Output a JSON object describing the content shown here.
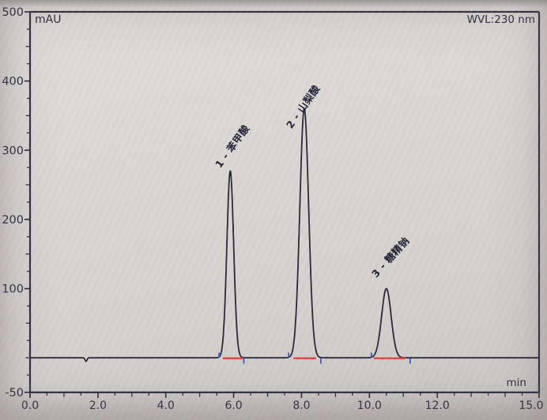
{
  "window": {
    "y_axis_unit": "mAU",
    "wavelength_label": "WVL:230 nm",
    "x_axis_unit": "min"
  },
  "chart_data": {
    "type": "line",
    "ylabel": "mAU",
    "xlabel": "min",
    "annotation": "WVL:230 nm",
    "xlim": [
      0.0,
      15.0
    ],
    "ylim": [
      -50,
      500
    ],
    "x_major_ticks": [
      0,
      2,
      4,
      6,
      8,
      10,
      12,
      15
    ],
    "x_major_tick_labels": [
      "0.0",
      "2.0",
      "4.0",
      "6.0",
      "8.0",
      "10.0",
      "12.0",
      "15.0"
    ],
    "x_minor_tick_step": 0.5,
    "y_major_ticks": [
      500,
      400,
      300,
      200,
      100,
      -50
    ],
    "y_major_tick_labels": [
      "500",
      "400",
      "300",
      "200",
      "100",
      "-50"
    ],
    "y_minor_tick_step": 25,
    "grid": false,
    "legend": false,
    "baseline_mau": 0,
    "baseline_dip": {
      "time_min": 1.65,
      "depth_mau": 5,
      "sigma_min": 0.03
    },
    "peaks": [
      {
        "number": 1,
        "label": "1 - 苯甲酸",
        "retention_time_min": 5.9,
        "height_mau": 270,
        "sigma_min": 0.1,
        "integration_start_min": 5.68,
        "integration_end_min": 6.27,
        "marker_start_min": 5.57,
        "marker_end_min": 6.3
      },
      {
        "number": 2,
        "label": "2 - 山梨酸",
        "retention_time_min": 8.08,
        "height_mau": 360,
        "sigma_min": 0.13,
        "integration_start_min": 7.76,
        "integration_end_min": 8.43,
        "marker_start_min": 7.62,
        "marker_end_min": 8.57
      },
      {
        "number": 3,
        "label": "3 - 糖精钠",
        "retention_time_min": 10.5,
        "height_mau": 100,
        "sigma_min": 0.14,
        "integration_start_min": 10.13,
        "integration_end_min": 11.06,
        "marker_start_min": 10.06,
        "marker_end_min": 11.2
      }
    ],
    "colors": {
      "trace": "#262838",
      "axis": "#2e3042",
      "tick_text": "#2b2e42",
      "integration_baseline": "#e14444",
      "peak_marker": "#4353c4"
    }
  }
}
